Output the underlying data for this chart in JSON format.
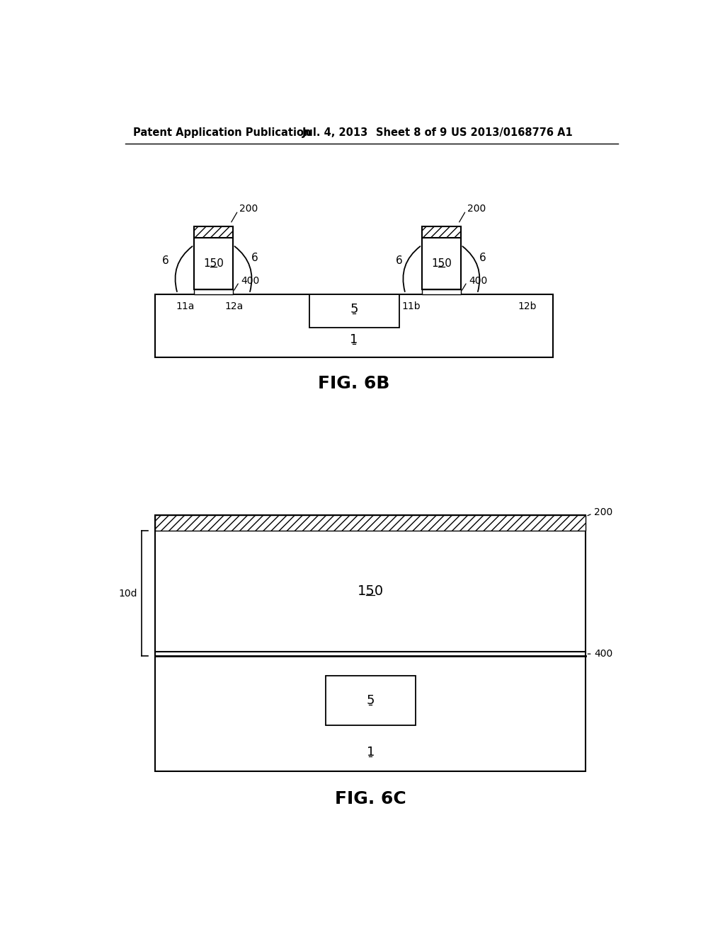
{
  "bg_color": "#ffffff",
  "header_text1": "Patent Application Publication",
  "header_text2": "Jul. 4, 2013",
  "header_text3": "Sheet 8 of 9",
  "header_text4": "US 2013/0168776 A1",
  "fig6b_label": "FIG. 6B",
  "fig6c_label": "FIG. 6C",
  "line_color": "#000000"
}
